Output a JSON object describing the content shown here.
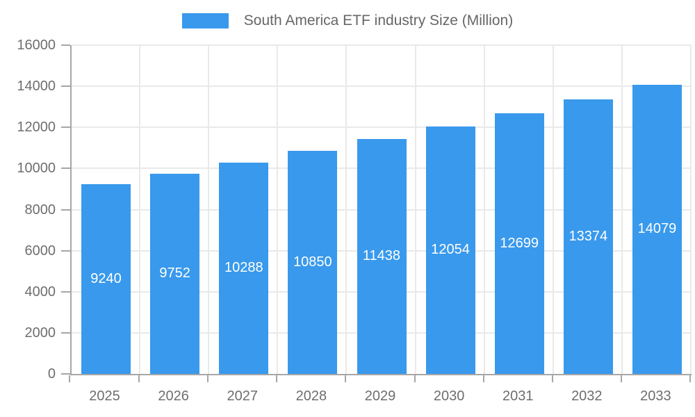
{
  "chart_data": {
    "type": "bar",
    "title": "South America ETF industry Size (Million)",
    "legend": {
      "label": "South America ETF industry Size (Million)",
      "position": "top"
    },
    "categories": [
      "2025",
      "2026",
      "2027",
      "2028",
      "2029",
      "2030",
      "2031",
      "2032",
      "2033"
    ],
    "values": [
      9240,
      9752,
      10288,
      10850,
      11438,
      12054,
      12699,
      13374,
      14079
    ],
    "value_labels_shown": true,
    "xlabel": "",
    "ylabel": "",
    "ylim": [
      0,
      16000
    ],
    "ytick_step": 2000,
    "yticks": [
      0,
      2000,
      4000,
      6000,
      8000,
      10000,
      12000,
      14000,
      16000
    ],
    "grid": true,
    "colors": {
      "bar": "#3999ec",
      "value_label": "#ffffff",
      "grid": "#e9e9e9",
      "axis": "#a6a6a6",
      "tick_text": "#6e6e6e",
      "legend_text": "#666666"
    }
  }
}
